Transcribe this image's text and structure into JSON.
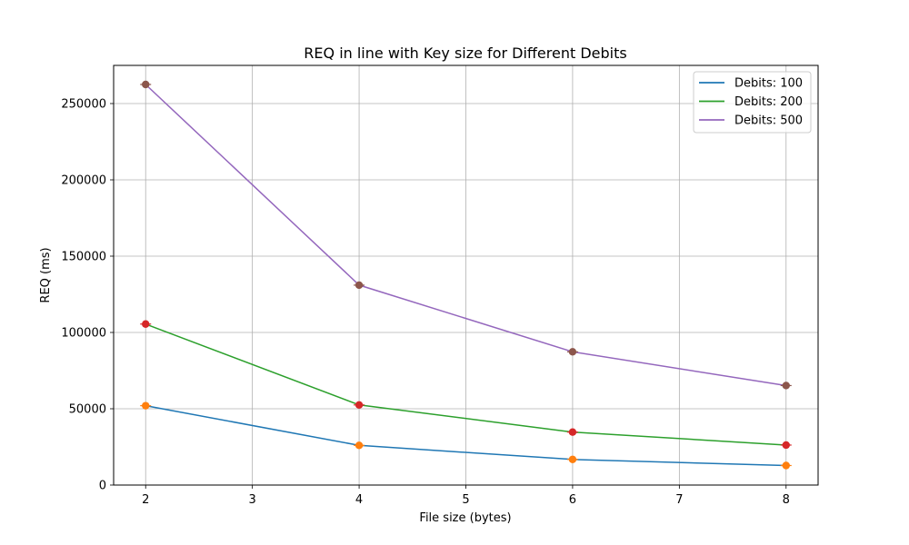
{
  "chart_data": {
    "type": "line",
    "title": "REQ in line with Key size for Different Debits",
    "xlabel": "File size (bytes)",
    "ylabel": "REQ (ms)",
    "xlim": [
      1.7,
      8.3
    ],
    "ylim": [
      0,
      275000
    ],
    "xticks": [
      2,
      3,
      4,
      5,
      6,
      7,
      8
    ],
    "yticks": [
      0,
      50000,
      100000,
      150000,
      200000,
      250000
    ],
    "grid": true,
    "legend_position": "top-right",
    "x": [
      2,
      4,
      6,
      8
    ],
    "series": [
      {
        "name": "Debits: 100",
        "color": "#1f77b4",
        "marker_color": "#ff7f0e",
        "values": [
          52000,
          26000,
          16800,
          12800
        ]
      },
      {
        "name": "Debits: 200",
        "color": "#2ca02c",
        "marker_color": "#d62728",
        "values": [
          105500,
          52500,
          34700,
          26200
        ]
      },
      {
        "name": "Debits: 500",
        "color": "#9467bd",
        "marker_color": "#8c564b",
        "values": [
          262500,
          131000,
          87300,
          65200
        ]
      }
    ]
  }
}
